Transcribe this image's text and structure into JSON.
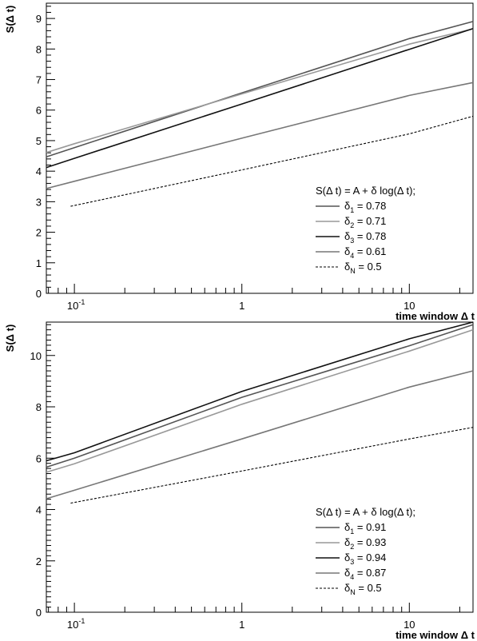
{
  "chart_data": [
    {
      "type": "line",
      "xlabel": "time window  Δ t",
      "ylabel": "S(Δ t)",
      "xscale": "log",
      "xlim": [
        0.068,
        24
      ],
      "ylim": [
        0,
        9.5
      ],
      "yticks": [
        "0",
        "1",
        "2",
        "3",
        "4",
        "5",
        "6",
        "7",
        "8",
        "9"
      ],
      "xticks": [
        {
          "base": "10",
          "exp": "-1"
        },
        {
          "base": "1",
          "exp": ""
        },
        {
          "base": "10",
          "exp": ""
        }
      ],
      "legend": {
        "position": "bottom-right",
        "title": "S(Δ t) = A + δ log(Δ t);",
        "entries": [
          {
            "sym": "δ",
            "sub": "1",
            "text": " = 0.78"
          },
          {
            "sym": "δ",
            "sub": "2",
            "text": " = 0.71"
          },
          {
            "sym": "δ",
            "sub": "3",
            "text": " = 0.78"
          },
          {
            "sym": "δ",
            "sub": "4",
            "text": " = 0.61"
          },
          {
            "sym": "δ",
            "sub": "N",
            "text": " = 0.5"
          }
        ]
      },
      "series": [
        {
          "x": [
            0.068,
            0.1,
            1,
            10,
            24
          ],
          "y": [
            4.47,
            4.77,
            6.56,
            8.34,
            8.9
          ],
          "color": "#555555",
          "dashed": false
        },
        {
          "x": [
            0.068,
            0.1,
            1,
            10,
            24
          ],
          "y": [
            4.61,
            4.9,
            6.53,
            8.16,
            8.66
          ],
          "color": "#999999",
          "dashed": false
        },
        {
          "x": [
            0.068,
            0.1,
            1,
            10,
            24
          ],
          "y": [
            4.12,
            4.42,
            6.2,
            7.99,
            8.67
          ],
          "color": "#111111",
          "dashed": false
        },
        {
          "x": [
            0.068,
            0.1,
            1,
            10,
            24
          ],
          "y": [
            3.43,
            3.67,
            5.08,
            6.48,
            6.9
          ],
          "color": "#777777",
          "dashed": false
        },
        {
          "x": [
            0.095,
            1,
            10,
            24
          ],
          "y": [
            2.85,
            4.04,
            5.22,
            5.8
          ],
          "color": "#000000",
          "dashed": true
        }
      ]
    },
    {
      "type": "line",
      "xlabel": "time window  Δ t",
      "ylabel": "S(Δ t)",
      "xscale": "log",
      "xlim": [
        0.068,
        24
      ],
      "ylim": [
        0,
        11.3
      ],
      "yticks": [
        "0",
        "2",
        "4",
        "6",
        "8",
        "10"
      ],
      "xticks": [
        {
          "base": "10",
          "exp": "-1"
        },
        {
          "base": "1",
          "exp": ""
        },
        {
          "base": "10",
          "exp": ""
        }
      ],
      "legend": {
        "position": "bottom-right",
        "title": "S(Δ t) = A + δ log(Δ t);",
        "entries": [
          {
            "sym": "δ",
            "sub": "1",
            "text": " = 0.91"
          },
          {
            "sym": "δ",
            "sub": "2",
            "text": " = 0.93"
          },
          {
            "sym": "δ",
            "sub": "3",
            "text": " = 0.94"
          },
          {
            "sym": "δ",
            "sub": "4",
            "text": " = 0.87"
          },
          {
            "sym": "δ",
            "sub": "N",
            "text": " = 0.5"
          }
        ]
      },
      "series": [
        {
          "x": [
            0.068,
            0.1,
            1,
            10,
            24
          ],
          "y": [
            5.65,
            6.0,
            8.37,
            10.38,
            11.2
          ],
          "color": "#555555",
          "dashed": false
        },
        {
          "x": [
            0.068,
            0.1,
            1,
            10,
            24
          ],
          "y": [
            5.45,
            5.78,
            8.1,
            10.17,
            11.0
          ],
          "color": "#999999",
          "dashed": false
        },
        {
          "x": [
            0.068,
            0.1,
            1,
            10,
            24
          ],
          "y": [
            5.9,
            6.21,
            8.6,
            10.65,
            11.3
          ],
          "color": "#111111",
          "dashed": false
        },
        {
          "x": [
            0.068,
            0.1,
            1,
            10,
            24
          ],
          "y": [
            4.42,
            4.75,
            6.75,
            8.77,
            9.4
          ],
          "color": "#777777",
          "dashed": false
        },
        {
          "x": [
            0.095,
            1,
            10,
            24
          ],
          "y": [
            4.25,
            5.5,
            6.75,
            7.2
          ],
          "color": "#000000",
          "dashed": true
        }
      ]
    }
  ]
}
